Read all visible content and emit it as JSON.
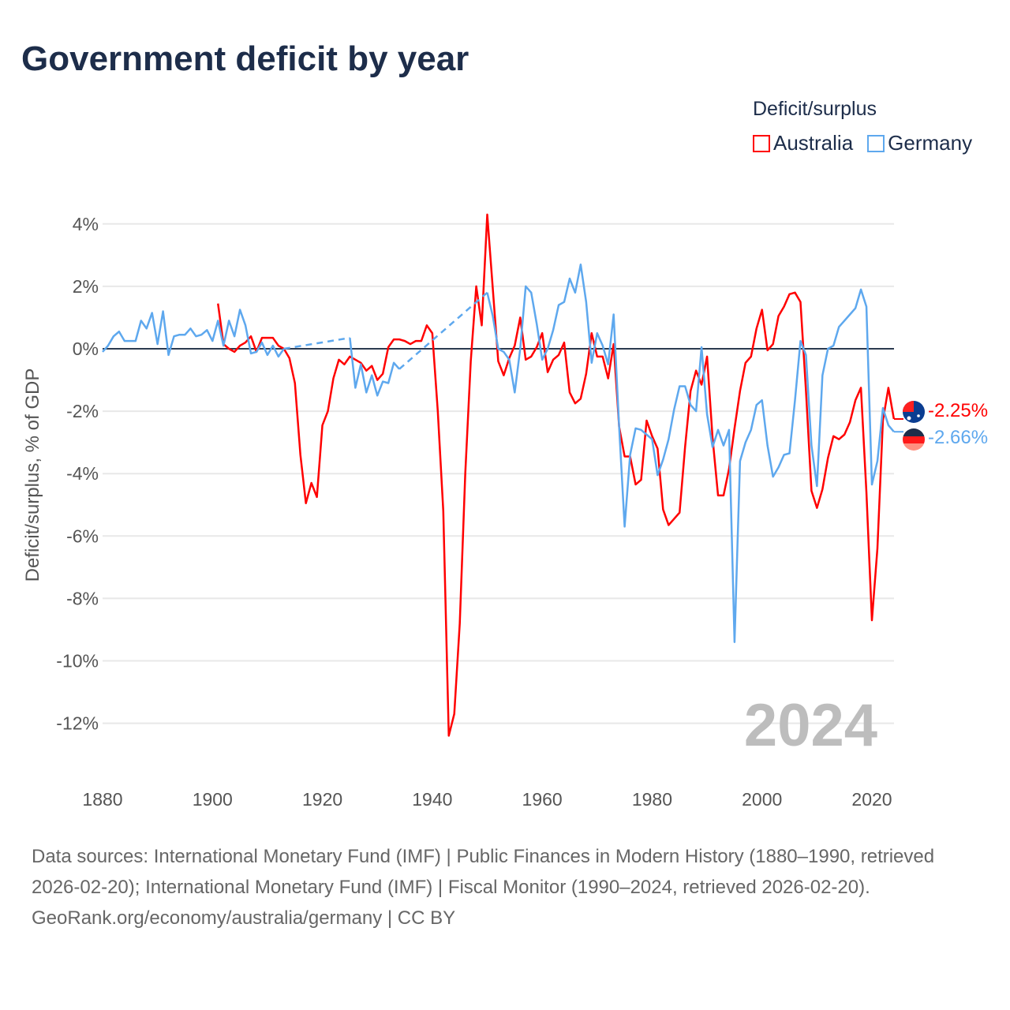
{
  "title": "Government deficit by year",
  "legend": {
    "title": "Deficit/surplus",
    "items": [
      {
        "label": "Australia",
        "color": "#ff0000"
      },
      {
        "label": "Germany",
        "color": "#5ea8ee"
      }
    ]
  },
  "current_year": "2024",
  "end_labels": {
    "australia": "-2.25%",
    "germany": "-2.66%"
  },
  "footer": {
    "sources": "Data sources: International Monetary Fund (IMF) | Public Finances in Modern History (1880–1990, retrieved 2026-02-20); International Monetary Fund (IMF) | Fiscal Monitor (1990–2024, retrieved 2026-02-20).",
    "credit": "GeoRank.org/economy/australia/germany | CC BY"
  },
  "chart_data": {
    "type": "line",
    "title": "Government deficit by year",
    "xlabel": "",
    "ylabel": "Deficit/surplus, % of GDP",
    "xlim": [
      1880,
      2024
    ],
    "ylim": [
      -12,
      4
    ],
    "xticks": [
      1880,
      1900,
      1920,
      1940,
      1960,
      1980,
      2000,
      2020
    ],
    "xtick_labels": [
      "1880",
      "1900",
      "1920",
      "1940",
      "1960",
      "1980",
      "2000",
      "2020"
    ],
    "yticks": [
      4,
      2,
      0,
      -2,
      -4,
      -6,
      -8,
      -10,
      -12
    ],
    "ytick_labels": [
      "4%",
      "2%",
      "0%",
      "-2%",
      "-4%",
      "-6%",
      "-8%",
      "-10%",
      "-12%"
    ],
    "grid": true,
    "legend_position": "top-right",
    "series": [
      {
        "name": "Australia",
        "color": "#ff0000",
        "start": 1901,
        "values": [
          1.45,
          0.15,
          0.0,
          -0.1,
          0.1,
          0.2,
          0.4,
          -0.1,
          0.35,
          0.35,
          0.35,
          0.1,
          0.0,
          -0.3,
          -1.1,
          -3.4,
          -4.95,
          -4.3,
          -4.75,
          -2.45,
          -2.0,
          -0.95,
          -0.35,
          -0.5,
          -0.25,
          -0.35,
          -0.45,
          -0.7,
          -0.55,
          -1.0,
          -0.8,
          0.05,
          0.3,
          0.3,
          0.25,
          0.15,
          0.25,
          0.25,
          0.75,
          0.5,
          -2.0,
          -5.2,
          -12.4,
          -11.7,
          -8.8,
          -4.0,
          -0.4,
          2.0,
          0.75,
          4.3,
          1.95,
          -0.4,
          -0.85,
          -0.3,
          0.1,
          1.0,
          -0.35,
          -0.25,
          0.05,
          0.5,
          -0.75,
          -0.35,
          -0.2,
          0.2,
          -1.4,
          -1.75,
          -1.6,
          -0.8,
          0.5,
          -0.25,
          -0.25,
          -0.95,
          0.15,
          -2.5,
          -3.45,
          -3.45,
          -4.35,
          -4.2,
          -2.3,
          -2.8,
          -3.2,
          -5.15,
          -5.65,
          -5.45,
          -5.25,
          -3.15,
          -1.35,
          -0.7,
          -1.15,
          -0.25,
          -2.85,
          -4.7,
          -4.7,
          -3.85,
          -2.55,
          -1.35,
          -0.45,
          -0.25,
          0.65,
          1.25,
          -0.05,
          0.15,
          1.05,
          1.35,
          1.75,
          1.8,
          1.5,
          -1.35,
          -4.55,
          -5.1,
          -4.5,
          -3.5,
          -2.8,
          -2.9,
          -2.75,
          -2.35,
          -1.65,
          -1.25,
          -4.6,
          -8.7,
          -6.4,
          -2.3,
          -1.25,
          -2.25
        ]
      },
      {
        "name": "Germany",
        "color": "#5ea8ee",
        "start": 1880,
        "values": [
          -0.1,
          0.1,
          0.4,
          0.55,
          0.25,
          0.25,
          0.25,
          0.9,
          0.65,
          1.15,
          0.15,
          1.2,
          -0.2,
          0.4,
          0.45,
          0.45,
          0.65,
          0.4,
          0.45,
          0.6,
          0.25,
          0.9,
          0.1,
          0.9,
          0.4,
          1.25,
          0.75,
          -0.15,
          -0.1,
          0.2,
          -0.2,
          0.1,
          -0.25,
          0.0,
          null,
          null,
          null,
          null,
          null,
          null,
          null,
          null,
          null,
          null,
          null,
          0.35,
          -1.25,
          -0.5,
          -1.4,
          -0.85,
          -1.5,
          -1.05,
          -1.1,
          -0.45,
          -0.65,
          null,
          null,
          null,
          null,
          null,
          null,
          null,
          null,
          null,
          null,
          null,
          null,
          null,
          null,
          null,
          1.8,
          1.05,
          0.0,
          -0.1,
          -0.35,
          -1.4,
          0.0,
          2.0,
          1.8,
          0.8,
          -0.35,
          0.0,
          0.6,
          1.4,
          1.5,
          2.25,
          1.8,
          2.7,
          1.5,
          -0.45,
          0.5,
          0.1,
          -0.5,
          1.1,
          -2.5,
          -5.7,
          -3.4,
          -2.55,
          -2.6,
          -2.75,
          -2.9,
          -4.05,
          -3.55,
          -2.9,
          -1.95,
          -1.2,
          -1.2,
          -1.8,
          -2.0,
          0.05,
          -2.1,
          -3.15,
          -2.6,
          -3.1,
          -2.6,
          -9.4,
          -3.6,
          -3.0,
          -2.6,
          -1.8,
          -1.65,
          -3.1,
          -4.1,
          -3.8,
          -3.4,
          -3.35,
          -1.65,
          0.25,
          -0.2,
          -3.1,
          -4.4,
          -0.85,
          0.0,
          0.1,
          0.7,
          0.9,
          1.1,
          1.3,
          1.9,
          1.35,
          -4.35,
          -3.6,
          -1.9,
          -2.45,
          -2.66
        ]
      }
    ]
  }
}
